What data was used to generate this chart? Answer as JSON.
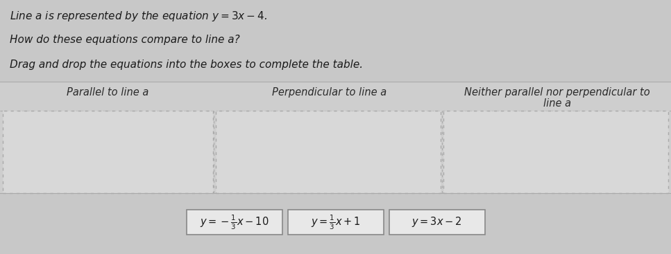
{
  "title_line1": "Line a is represented by the equation $y = 3x - 4$.",
  "title_line2": "How do these equations compare to line a?",
  "title_line3": "Drag and drop the equations into the boxes to complete the table.",
  "col_header1": "Parallel to line a",
  "col_header2": "Perpendicular to line a",
  "col_header3_line1": "Neither parallel nor perpendicular to",
  "col_header3_line2": "line a",
  "drag_eq1": "$y = -\\frac{1}{3}x - 10$",
  "drag_eq2": "$y = \\frac{1}{3}x + 1$",
  "drag_eq3": "$y = 3x - 2$",
  "bg_color": "#c8c8c8",
  "table_bg": "#d0d0d0",
  "box_fill": "#d8d8d8",
  "drag_box_bg": "#e8e8e8",
  "header_color": "#2a2a2a",
  "text_color": "#1a1a1a",
  "sep_line_color": "#aaaaaa",
  "box_border_color": "#aaaaaa",
  "drag_box_border": "#888888",
  "title_fontsize": 11,
  "header_fontsize": 10.5,
  "drag_fontsize": 10.5
}
